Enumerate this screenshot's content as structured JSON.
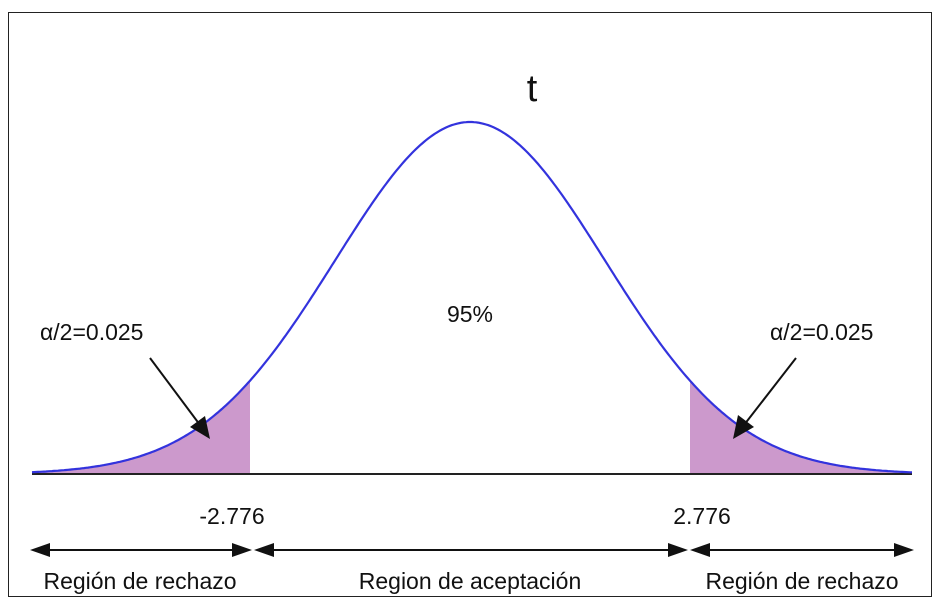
{
  "figure": {
    "title": "t",
    "center_label": "95%",
    "alpha_left_label": "α/2=0.025",
    "alpha_right_label": "α/2=0.025",
    "critical_left_label": "-2.776",
    "critical_right_label": "2.776",
    "region_left_label": "Región de rechazo",
    "region_center_label": "Region de aceptación",
    "region_right_label": "Región de rechazo"
  },
  "distribution": {
    "type": "t",
    "critical_values": [
      -2.776,
      2.776
    ],
    "central_area": 0.95,
    "tail_area": 0.025
  },
  "colors": {
    "curve": "#3333dd",
    "shade": "#cc99cc",
    "axis": "#222222",
    "text": "#111111"
  }
}
